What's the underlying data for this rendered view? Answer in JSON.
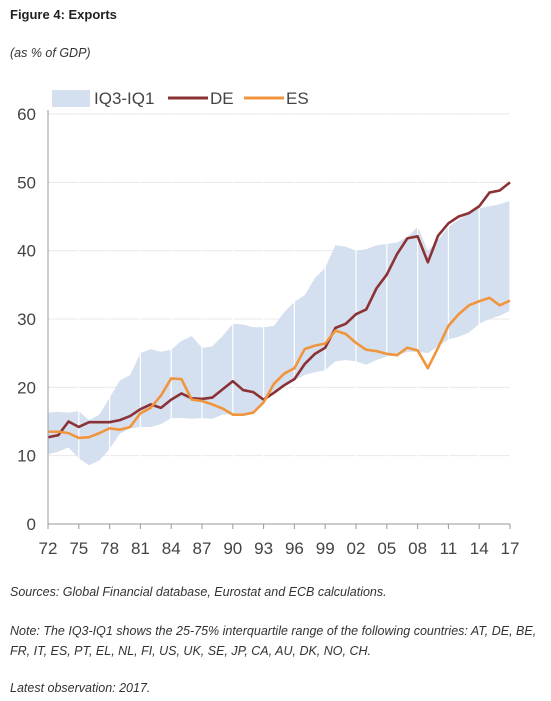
{
  "figure": {
    "title": "Figure 4: Exports",
    "subtitle": "(as % of GDP)"
  },
  "notes": {
    "sources": "Sources: Global Financial database, Eurostat and ECB calculations.",
    "note": "Note: The IQ3-IQ1 shows the 25-75% interquartile range of the following countries: AT, DE, BE, FR, IT, ES, PT, EL, NL, FI, US, UK, SE, JP, CA, AU, DK, NO, CH.",
    "latest": "Latest observation: 2017."
  },
  "colors": {
    "band": "#d4e0ef",
    "de": "#8b3236",
    "es": "#f0953e",
    "axis": "#999999",
    "grid": "#ffffff"
  },
  "chart_data": {
    "type": "line",
    "title": "",
    "xlabel": "",
    "ylabel": "",
    "ylim": [
      0,
      60
    ],
    "yticks": [
      0,
      10,
      20,
      30,
      40,
      50,
      60
    ],
    "xlim": [
      1972,
      2017
    ],
    "xticks": [
      "72",
      "75",
      "78",
      "81",
      "84",
      "87",
      "90",
      "93",
      "96",
      "99",
      "02",
      "05",
      "08",
      "11",
      "14",
      "17"
    ],
    "xtick_years": [
      1972,
      1975,
      1978,
      1981,
      1984,
      1987,
      1990,
      1993,
      1996,
      1999,
      2002,
      2005,
      2008,
      2011,
      2014,
      2017
    ],
    "legend": {
      "position": "top-left",
      "labels": [
        "IQ3-IQ1",
        "DE",
        "ES"
      ]
    },
    "x": [
      1972,
      1973,
      1974,
      1975,
      1976,
      1977,
      1978,
      1979,
      1980,
      1981,
      1982,
      1983,
      1984,
      1985,
      1986,
      1987,
      1988,
      1989,
      1990,
      1991,
      1992,
      1993,
      1994,
      1995,
      1996,
      1997,
      1998,
      1999,
      2000,
      2001,
      2002,
      2003,
      2004,
      2005,
      2006,
      2007,
      2008,
      2009,
      2010,
      2011,
      2012,
      2013,
      2014,
      2015,
      2016,
      2017
    ],
    "band": {
      "name": "IQ3-IQ1",
      "upper": [
        16.3,
        16.4,
        16.3,
        16.5,
        15.2,
        16.0,
        18.5,
        21.0,
        21.8,
        25.0,
        25.6,
        25.2,
        25.5,
        26.8,
        27.5,
        25.8,
        26.0,
        27.5,
        29.3,
        29.2,
        28.8,
        28.8,
        29.0,
        31.0,
        32.5,
        33.5,
        36.0,
        37.5,
        40.8,
        40.6,
        40.0,
        40.2,
        40.8,
        41.0,
        41.2,
        42.0,
        43.5,
        40.0,
        41.5,
        43.5,
        44.5,
        45.5,
        46.2,
        46.5,
        46.8,
        47.3
      ],
      "lower": [
        10.2,
        10.6,
        11.2,
        9.6,
        8.6,
        9.3,
        11.0,
        13.2,
        14.0,
        14.2,
        14.2,
        14.6,
        15.5,
        15.5,
        15.4,
        15.5,
        15.4,
        16.0,
        16.1,
        16.1,
        16.3,
        17.8,
        19.2,
        20.2,
        21.0,
        21.8,
        22.2,
        22.5,
        23.8,
        24.0,
        23.8,
        23.3,
        24.0,
        24.5,
        24.7,
        25.2,
        25.2,
        25.0,
        26.0,
        27.0,
        27.4,
        28.0,
        29.3,
        30.0,
        30.5,
        31.2
      ]
    },
    "series": [
      {
        "name": "DE",
        "values": [
          12.7,
          13.0,
          15.0,
          14.2,
          14.9,
          14.9,
          14.9,
          15.2,
          15.8,
          16.8,
          17.5,
          17.0,
          18.2,
          19.1,
          18.4,
          18.3,
          18.5,
          19.7,
          20.9,
          19.6,
          19.3,
          18.2,
          19.2,
          20.3,
          21.2,
          23.4,
          24.9,
          25.8,
          28.7,
          29.3,
          30.7,
          31.4,
          34.5,
          36.5,
          39.5,
          41.8,
          42.1,
          38.3,
          42.2,
          44.0,
          45.0,
          45.5,
          46.5,
          48.5,
          48.8,
          50.0
        ]
      },
      {
        "name": "ES",
        "values": [
          13.5,
          13.5,
          13.3,
          12.6,
          12.7,
          13.3,
          14.0,
          13.8,
          14.2,
          16.2,
          17.0,
          18.8,
          21.3,
          21.2,
          18.2,
          18.0,
          17.5,
          16.9,
          16.0,
          16.0,
          16.3,
          17.8,
          20.5,
          22.0,
          22.8,
          25.6,
          26.1,
          26.4,
          28.3,
          27.8,
          26.5,
          25.5,
          25.3,
          24.9,
          24.7,
          25.8,
          25.4,
          22.8,
          25.8,
          29.0,
          30.7,
          32.0,
          32.6,
          33.1,
          32.0,
          32.7
        ]
      }
    ]
  }
}
